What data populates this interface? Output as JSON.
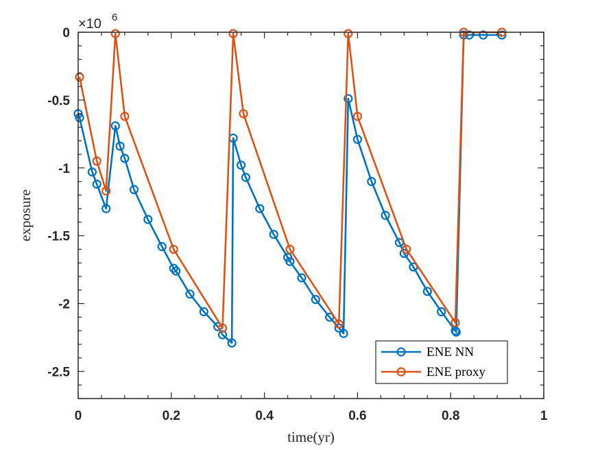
{
  "chart_data": {
    "type": "line",
    "title": "",
    "xlabel": "time(yr)",
    "ylabel": "exposure",
    "y_multiplier_base": "×10",
    "y_multiplier_exp": "6",
    "xlim": [
      0,
      1
    ],
    "ylim": [
      -2.7,
      0
    ],
    "x_ticks": [
      0,
      0.2,
      0.4,
      0.6,
      0.8,
      1
    ],
    "x_tick_labels": [
      "0",
      "0.2",
      "0.4",
      "0.6",
      "0.8",
      "1"
    ],
    "y_ticks": [
      0,
      -0.5,
      -1,
      -1.5,
      -2,
      -2.5
    ],
    "y_tick_labels": [
      "0",
      "-0.5",
      "-1",
      "-1.5",
      "-2",
      "-2.5"
    ],
    "grid": false,
    "legend_position": "bottom-right",
    "series": [
      {
        "name": "ENE NN",
        "color": "#0072BD",
        "points": [
          [
            0.0,
            -0.6
          ],
          [
            0.003,
            -0.63
          ],
          [
            0.03,
            -1.03
          ],
          [
            0.04,
            -1.12
          ],
          [
            0.06,
            -1.3
          ],
          [
            0.08,
            -0.69
          ],
          [
            0.09,
            -0.84
          ],
          [
            0.1,
            -0.93
          ],
          [
            0.12,
            -1.16
          ],
          [
            0.15,
            -1.38
          ],
          [
            0.18,
            -1.58
          ],
          [
            0.205,
            -1.74
          ],
          [
            0.21,
            -1.76
          ],
          [
            0.24,
            -1.93
          ],
          [
            0.27,
            -2.06
          ],
          [
            0.3,
            -2.17
          ],
          [
            0.31,
            -2.23
          ],
          [
            0.33,
            -2.29
          ],
          [
            0.333,
            -0.78
          ],
          [
            0.35,
            -0.98
          ],
          [
            0.36,
            -1.07
          ],
          [
            0.39,
            -1.3
          ],
          [
            0.42,
            -1.49
          ],
          [
            0.45,
            -1.66
          ],
          [
            0.455,
            -1.69
          ],
          [
            0.48,
            -1.81
          ],
          [
            0.51,
            -1.97
          ],
          [
            0.54,
            -2.1
          ],
          [
            0.56,
            -2.18
          ],
          [
            0.57,
            -2.22
          ],
          [
            0.58,
            -0.49
          ],
          [
            0.6,
            -0.79
          ],
          [
            0.63,
            -1.1
          ],
          [
            0.66,
            -1.35
          ],
          [
            0.69,
            -1.55
          ],
          [
            0.7,
            -1.63
          ],
          [
            0.72,
            -1.73
          ],
          [
            0.75,
            -1.91
          ],
          [
            0.78,
            -2.06
          ],
          [
            0.81,
            -2.2
          ],
          [
            0.812,
            -2.21
          ],
          [
            0.828,
            -0.02
          ],
          [
            0.84,
            -0.02
          ],
          [
            0.87,
            -0.02
          ],
          [
            0.91,
            -0.02
          ]
        ]
      },
      {
        "name": "ENE proxy",
        "color": "#D95319",
        "points": [
          [
            0.003,
            -0.33
          ],
          [
            0.04,
            -0.95
          ],
          [
            0.06,
            -1.17
          ],
          [
            0.08,
            -0.01
          ],
          [
            0.1,
            -0.62
          ],
          [
            0.205,
            -1.6
          ],
          [
            0.31,
            -2.18
          ],
          [
            0.333,
            -0.01
          ],
          [
            0.355,
            -0.6
          ],
          [
            0.455,
            -1.6
          ],
          [
            0.56,
            -2.15
          ],
          [
            0.58,
            -0.01
          ],
          [
            0.6,
            -0.62
          ],
          [
            0.705,
            -1.6
          ],
          [
            0.81,
            -2.14
          ],
          [
            0.828,
            0.0
          ],
          [
            0.91,
            0.0
          ]
        ]
      }
    ]
  }
}
